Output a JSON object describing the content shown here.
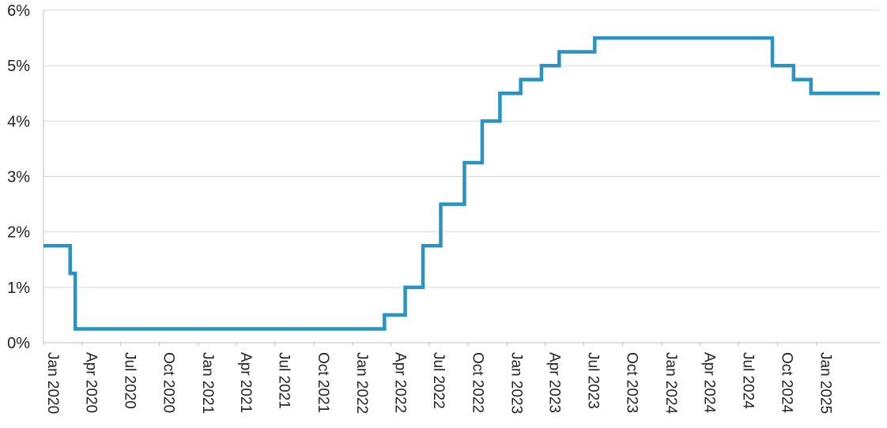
{
  "chart_data": {
    "type": "line",
    "title": "",
    "xlabel": "",
    "ylabel": "",
    "x_range": [
      "2020-01-01",
      "2025-05-31"
    ],
    "ylim": [
      0,
      6
    ],
    "y_ticks": [
      {
        "value": 0,
        "label": "0%"
      },
      {
        "value": 1,
        "label": "1%"
      },
      {
        "value": 2,
        "label": "2%"
      },
      {
        "value": 3,
        "label": "3%"
      },
      {
        "value": 4,
        "label": "4%"
      },
      {
        "value": 5,
        "label": "5%"
      },
      {
        "value": 6,
        "label": "6%"
      }
    ],
    "x_ticks": [
      {
        "date": "2020-01-01",
        "label": "Jan 2020"
      },
      {
        "date": "2020-04-01",
        "label": "Apr 2020"
      },
      {
        "date": "2020-07-01",
        "label": "Jul 2020"
      },
      {
        "date": "2020-10-01",
        "label": "Oct 2020"
      },
      {
        "date": "2021-01-01",
        "label": "Jan 2021"
      },
      {
        "date": "2021-04-01",
        "label": "Apr 2021"
      },
      {
        "date": "2021-07-01",
        "label": "Jul 2021"
      },
      {
        "date": "2021-10-01",
        "label": "Oct 2021"
      },
      {
        "date": "2022-01-01",
        "label": "Jan 2022"
      },
      {
        "date": "2022-04-01",
        "label": "Apr 2022"
      },
      {
        "date": "2022-07-01",
        "label": "Jul 2022"
      },
      {
        "date": "2022-10-01",
        "label": "Oct 2022"
      },
      {
        "date": "2023-01-01",
        "label": "Jan 2023"
      },
      {
        "date": "2023-04-01",
        "label": "Apr 2023"
      },
      {
        "date": "2023-07-01",
        "label": "Jul 2023"
      },
      {
        "date": "2023-10-01",
        "label": "Oct 2023"
      },
      {
        "date": "2024-01-01",
        "label": "Jan 2024"
      },
      {
        "date": "2024-04-01",
        "label": "Apr 2024"
      },
      {
        "date": "2024-07-01",
        "label": "Jul 2024"
      },
      {
        "date": "2024-10-01",
        "label": "Oct 2024"
      },
      {
        "date": "2025-01-01",
        "label": "Jan 2025"
      }
    ],
    "grid": true,
    "series": [
      {
        "step": true,
        "color": "#2b93c1",
        "points": [
          {
            "date": "2020-01-01",
            "value": 1.75
          },
          {
            "date": "2020-03-04",
            "value": 1.25
          },
          {
            "date": "2020-03-16",
            "value": 0.25
          },
          {
            "date": "2022-03-17",
            "value": 0.5
          },
          {
            "date": "2022-05-05",
            "value": 1.0
          },
          {
            "date": "2022-06-16",
            "value": 1.75
          },
          {
            "date": "2022-07-28",
            "value": 2.5
          },
          {
            "date": "2022-09-22",
            "value": 3.25
          },
          {
            "date": "2022-11-03",
            "value": 4.0
          },
          {
            "date": "2022-12-15",
            "value": 4.5
          },
          {
            "date": "2023-02-02",
            "value": 4.75
          },
          {
            "date": "2023-03-23",
            "value": 5.0
          },
          {
            "date": "2023-05-04",
            "value": 5.25
          },
          {
            "date": "2023-07-27",
            "value": 5.5
          },
          {
            "date": "2024-09-19",
            "value": 5.0
          },
          {
            "date": "2024-11-08",
            "value": 4.75
          },
          {
            "date": "2024-12-19",
            "value": 4.5
          },
          {
            "date": "2025-05-31",
            "value": 4.5
          }
        ]
      }
    ],
    "colors": {
      "line": "#2b93c1",
      "grid": "#d9d9d9",
      "axis": "#bfbfbf",
      "text": "#222222"
    }
  }
}
